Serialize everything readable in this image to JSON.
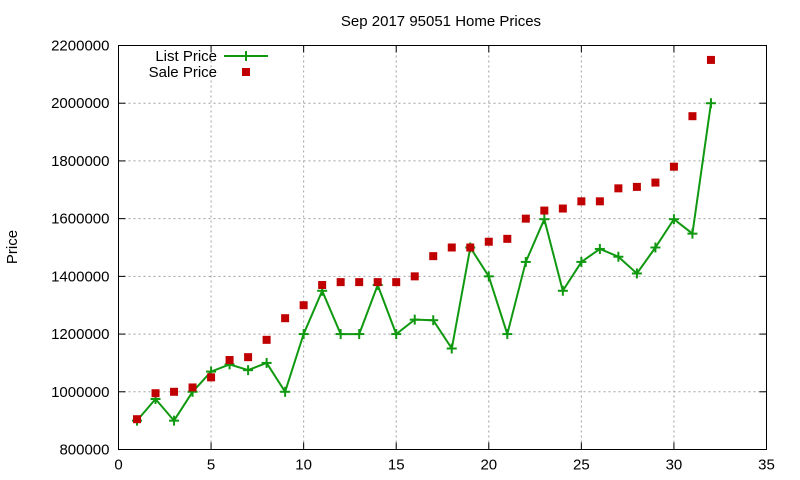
{
  "chart_data": {
    "type": "line",
    "title": "Sep 2017 95051 Home Prices",
    "xlabel": "",
    "ylabel": "Price",
    "xlim": [
      0,
      35
    ],
    "ylim": [
      800000,
      2200000
    ],
    "xticks": [
      0,
      5,
      10,
      15,
      20,
      25,
      30,
      35
    ],
    "yticks": [
      800000,
      1000000,
      1200000,
      1400000,
      1600000,
      1800000,
      2000000,
      2200000
    ],
    "xtick_labels": [
      "0",
      "5",
      "10",
      "15",
      "20",
      "25",
      "30",
      "35"
    ],
    "ytick_labels": [
      "800000",
      "1000000",
      "1200000",
      "1400000",
      "1600000",
      "1800000",
      "2000000",
      "2200000"
    ],
    "grid": true,
    "legend_position": "top-left",
    "series": [
      {
        "name": "List Price",
        "style": "line-with-plus-markers",
        "color": "#109910",
        "x": [
          1,
          2,
          3,
          4,
          5,
          6,
          7,
          8,
          9,
          10,
          11,
          12,
          13,
          14,
          15,
          16,
          17,
          18,
          19,
          20,
          21,
          22,
          23,
          24,
          25,
          26,
          27,
          28,
          29,
          30,
          31,
          32
        ],
        "values": [
          900000,
          975000,
          900000,
          1000000,
          1070000,
          1095000,
          1075000,
          1100000,
          1000000,
          1200000,
          1350000,
          1200000,
          1200000,
          1370000,
          1200000,
          1250000,
          1248000,
          1150000,
          1500000,
          1400000,
          1200000,
          1450000,
          1598000,
          1350000,
          1450000,
          1495000,
          1468000,
          1410000,
          1500000,
          1598000,
          1548000,
          2000000
        ]
      },
      {
        "name": "Sale Price",
        "style": "square-markers",
        "color": "#c00000",
        "x": [
          1,
          2,
          3,
          4,
          5,
          6,
          7,
          8,
          9,
          10,
          11,
          12,
          13,
          14,
          15,
          16,
          17,
          18,
          19,
          20,
          21,
          22,
          23,
          24,
          25,
          26,
          27,
          28,
          29,
          30,
          31,
          32
        ],
        "values": [
          905000,
          995000,
          1000000,
          1015000,
          1050000,
          1110000,
          1120000,
          1180000,
          1255000,
          1300000,
          1370000,
          1380000,
          1380000,
          1380000,
          1380000,
          1400000,
          1470000,
          1500000,
          1500000,
          1520000,
          1530000,
          1600000,
          1628000,
          1635000,
          1660000,
          1660000,
          1705000,
          1710000,
          1725000,
          1780000,
          1955000,
          2150000
        ]
      }
    ]
  }
}
